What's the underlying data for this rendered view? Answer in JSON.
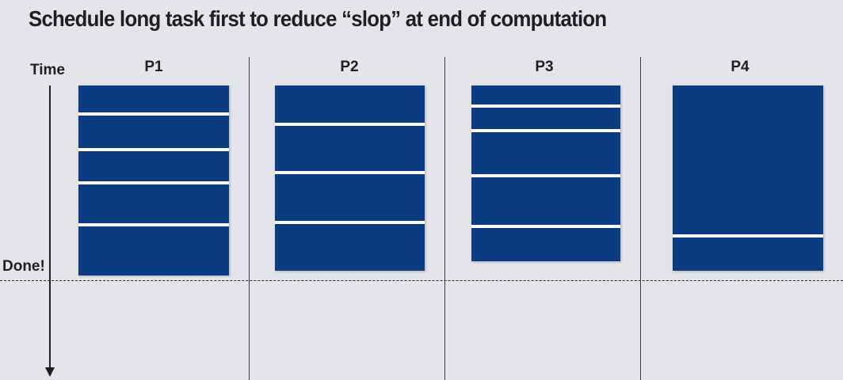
{
  "title": "Schedule long task first to reduce “slop” at end of computation",
  "time_label": "Time",
  "done_label": "Done!",
  "colors": {
    "task": "#0b3c82",
    "background": "#e4e5ea",
    "separator": "#ffffff"
  },
  "processors": [
    {
      "name": "P1",
      "tasks": [
        34,
        41,
        38,
        49,
        62
      ]
    },
    {
      "name": "P2",
      "tasks": [
        47,
        57,
        59,
        59
      ]
    },
    {
      "name": "P3",
      "tasks": [
        24,
        27,
        53,
        60,
        42
      ]
    },
    {
      "name": "P4",
      "tasks": [
        188,
        42
      ]
    }
  ]
}
